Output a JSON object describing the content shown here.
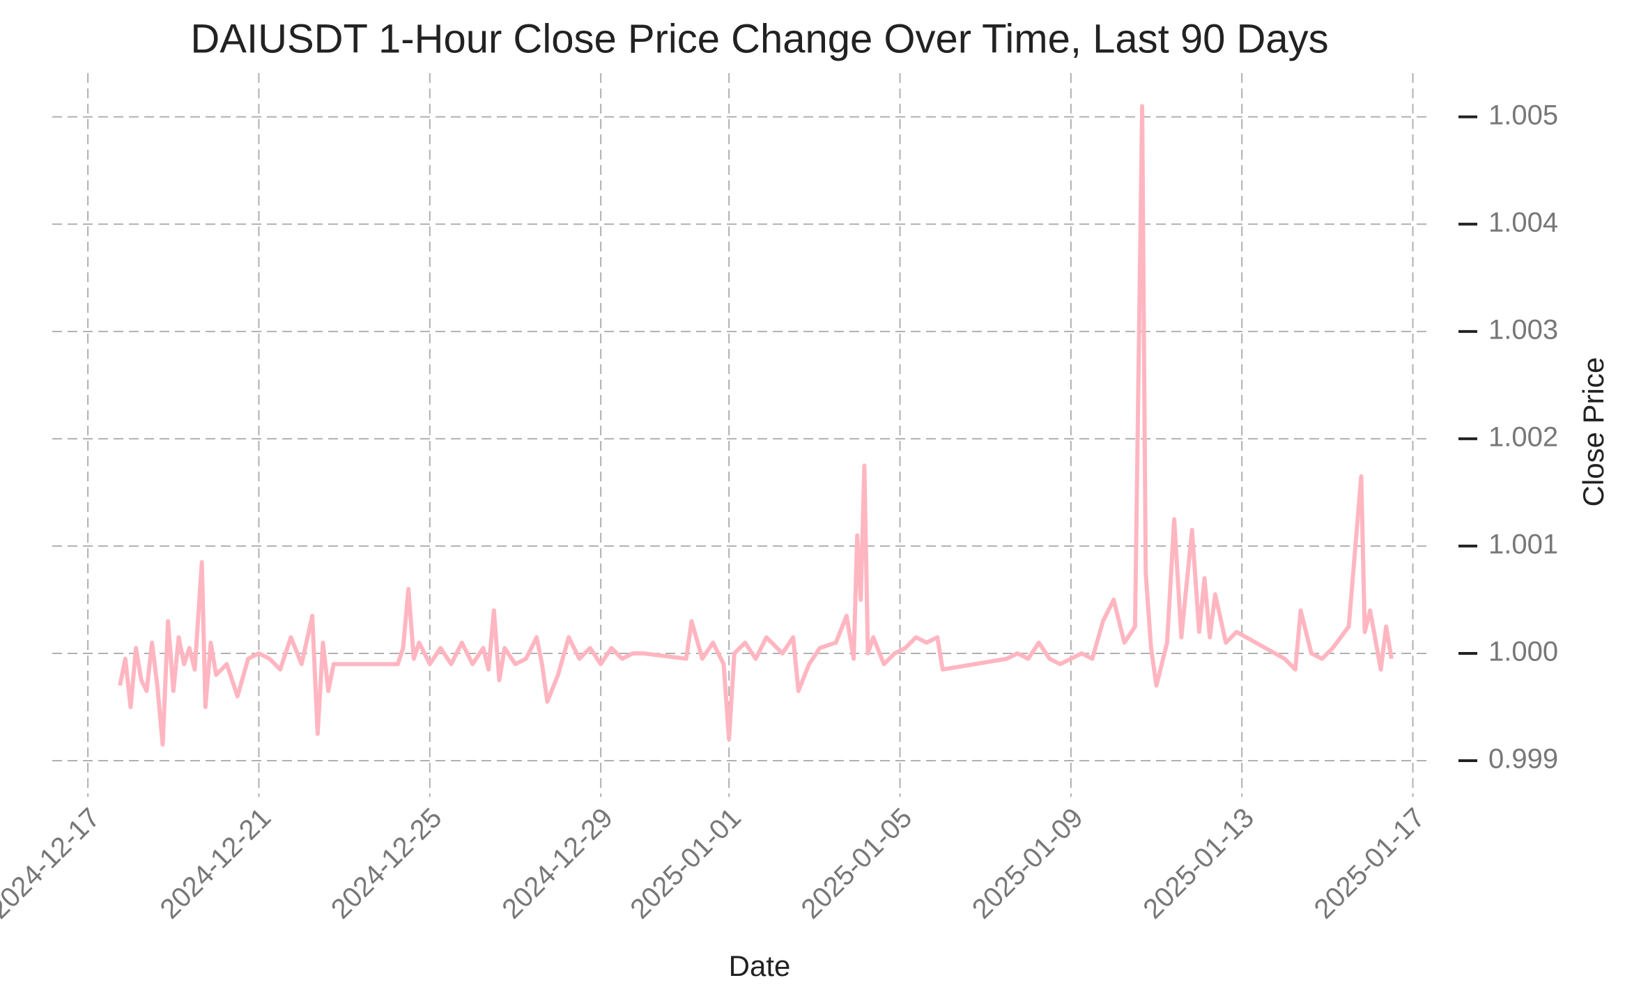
{
  "chart_data": {
    "type": "line",
    "title": "DAIUSDT 1-Hour Close Price Change Over Time, Last 90 Days",
    "x_label": "Date",
    "y_label": "Close Price",
    "x": [
      "2024-12-17T18:00",
      "2024-12-17T21:00",
      "2024-12-18T00:00",
      "2024-12-18T03:00",
      "2024-12-18T06:00",
      "2024-12-18T09:00",
      "2024-12-18T12:00",
      "2024-12-18T15:00",
      "2024-12-18T18:00",
      "2024-12-18T21:00",
      "2024-12-19T00:00",
      "2024-12-19T03:00",
      "2024-12-19T06:00",
      "2024-12-19T09:00",
      "2024-12-19T12:00",
      "2024-12-19T16:00",
      "2024-12-19T18:00",
      "2024-12-19T21:00",
      "2024-12-20T00:00",
      "2024-12-20T06:00",
      "2024-12-20T12:00",
      "2024-12-20T18:00",
      "2024-12-21T00:00",
      "2024-12-21T06:00",
      "2024-12-21T12:00",
      "2024-12-21T18:00",
      "2024-12-22T00:00",
      "2024-12-22T06:00",
      "2024-12-22T09:00",
      "2024-12-22T12:00",
      "2024-12-22T15:00",
      "2024-12-22T18:00",
      "2024-12-24T06:00",
      "2024-12-24T09:00",
      "2024-12-24T12:00",
      "2024-12-24T15:00",
      "2024-12-24T18:00",
      "2024-12-25T00:00",
      "2024-12-25T06:00",
      "2024-12-25T12:00",
      "2024-12-25T18:00",
      "2024-12-26T00:00",
      "2024-12-26T06:00",
      "2024-12-26T09:00",
      "2024-12-26T12:00",
      "2024-12-26T15:00",
      "2024-12-26T18:00",
      "2024-12-27T00:00",
      "2024-12-27T06:00",
      "2024-12-27T12:00",
      "2024-12-27T15:00",
      "2024-12-27T18:00",
      "2024-12-28T00:00",
      "2024-12-28T06:00",
      "2024-12-28T12:00",
      "2024-12-28T18:00",
      "2024-12-29T00:00",
      "2024-12-29T06:00",
      "2024-12-29T12:00",
      "2024-12-29T18:00",
      "2024-12-30T00:00",
      "2024-12-31T00:00",
      "2024-12-31T03:00",
      "2024-12-31T09:00",
      "2024-12-31T15:00",
      "2024-12-31T21:00",
      "2025-01-01T00:00",
      "2025-01-01T03:00",
      "2025-01-01T09:00",
      "2025-01-01T15:00",
      "2025-01-01T21:00",
      "2025-01-02T06:00",
      "2025-01-02T12:00",
      "2025-01-02T15:00",
      "2025-01-02T21:00",
      "2025-01-03T03:00",
      "2025-01-03T12:00",
      "2025-01-03T18:00",
      "2025-01-03T22:00",
      "2025-01-04T00:00",
      "2025-01-04T02:00",
      "2025-01-04T04:00",
      "2025-01-04T06:00",
      "2025-01-04T09:00",
      "2025-01-04T15:00",
      "2025-01-04T21:00",
      "2025-01-05T03:00",
      "2025-01-05T09:00",
      "2025-01-05T15:00",
      "2025-01-05T21:00",
      "2025-01-06T00:00",
      "2025-01-07T12:00",
      "2025-01-07T18:00",
      "2025-01-08T00:00",
      "2025-01-08T06:00",
      "2025-01-08T12:00",
      "2025-01-08T18:00",
      "2025-01-09T00:00",
      "2025-01-09T06:00",
      "2025-01-09T12:00",
      "2025-01-09T18:00",
      "2025-01-10T00:00",
      "2025-01-10T06:00",
      "2025-01-10T12:00",
      "2025-01-10T16:00",
      "2025-01-10T18:00",
      "2025-01-10T21:00",
      "2025-01-11T00:00",
      "2025-01-11T06:00",
      "2025-01-11T10:00",
      "2025-01-11T14:00",
      "2025-01-11T20:00",
      "2025-01-12T00:00",
      "2025-01-12T03:00",
      "2025-01-12T06:00",
      "2025-01-12T09:00",
      "2025-01-12T15:00",
      "2025-01-12T21:00",
      "2025-01-14T00:00",
      "2025-01-14T06:00",
      "2025-01-14T09:00",
      "2025-01-14T15:00",
      "2025-01-14T21:00",
      "2025-01-15T03:00",
      "2025-01-15T12:00",
      "2025-01-15T19:00",
      "2025-01-15T21:00",
      "2025-01-16T00:00",
      "2025-01-16T06:00",
      "2025-01-16T09:00",
      "2025-01-16T12:00"
    ],
    "series": [
      {
        "color": "#ffb6c1",
        "values": [
          0.9997,
          0.99995,
          0.9995,
          1.00005,
          0.99975,
          0.99965,
          1.0001,
          0.9997,
          0.99915,
          1.0003,
          0.99965,
          1.00015,
          0.9999,
          1.00005,
          0.99985,
          1.00085,
          0.9995,
          1.0001,
          0.9998,
          0.9999,
          0.9996,
          0.99995,
          1.0,
          0.99995,
          0.99985,
          1.00015,
          0.9999,
          1.00035,
          0.99925,
          1.0001,
          0.99965,
          0.9999,
          0.9999,
          1.00005,
          1.0006,
          0.99995,
          1.0001,
          0.9999,
          1.00005,
          0.9999,
          1.0001,
          0.9999,
          1.00005,
          0.99985,
          1.0004,
          0.99975,
          1.00005,
          0.9999,
          0.99995,
          1.00015,
          0.9999,
          0.99955,
          0.9998,
          1.00015,
          0.99995,
          1.00005,
          0.9999,
          1.00005,
          0.99995,
          1.0,
          1.0,
          0.99995,
          1.0003,
          0.99995,
          1.0001,
          0.9999,
          0.9992,
          1.0,
          1.0001,
          0.99995,
          1.00015,
          1.0,
          1.00015,
          0.99965,
          0.9999,
          1.00005,
          1.0001,
          1.00035,
          0.99995,
          1.0011,
          1.0005,
          1.00175,
          1.0,
          1.00015,
          0.9999,
          1.0,
          1.00005,
          1.00015,
          1.0001,
          1.00015,
          0.99985,
          0.99995,
          1.0,
          0.99995,
          1.0001,
          0.99995,
          0.9999,
          0.99995,
          1.0,
          0.99995,
          1.0003,
          1.0005,
          1.0001,
          1.00025,
          1.0051,
          1.00075,
          1.00005,
          0.9997,
          1.0001,
          1.00125,
          1.00015,
          1.00115,
          1.0002,
          1.0007,
          1.00015,
          1.00055,
          1.0001,
          1.0002,
          0.99995,
          0.99985,
          1.0004,
          1.0,
          0.99995,
          1.00005,
          1.00025,
          1.00165,
          1.0002,
          1.0004,
          0.99985,
          1.00025,
          0.99995
        ]
      }
    ],
    "xlim": [
      "2024-12-16T04:00",
      "2025-01-17T08:00"
    ],
    "xticks": [
      "2024-12-17",
      "2024-12-21",
      "2024-12-25",
      "2024-12-29",
      "2025-01-01",
      "2025-01-05",
      "2025-01-09",
      "2025-01-13",
      "2025-01-17"
    ],
    "ylim": [
      0.99876,
      1.00531
    ],
    "yticks": [
      0.999,
      {
        "value": 1,
        "label": "1.000"
      },
      1.001,
      1.002,
      1.003,
      1.004,
      1.005
    ],
    "grid": true
  }
}
